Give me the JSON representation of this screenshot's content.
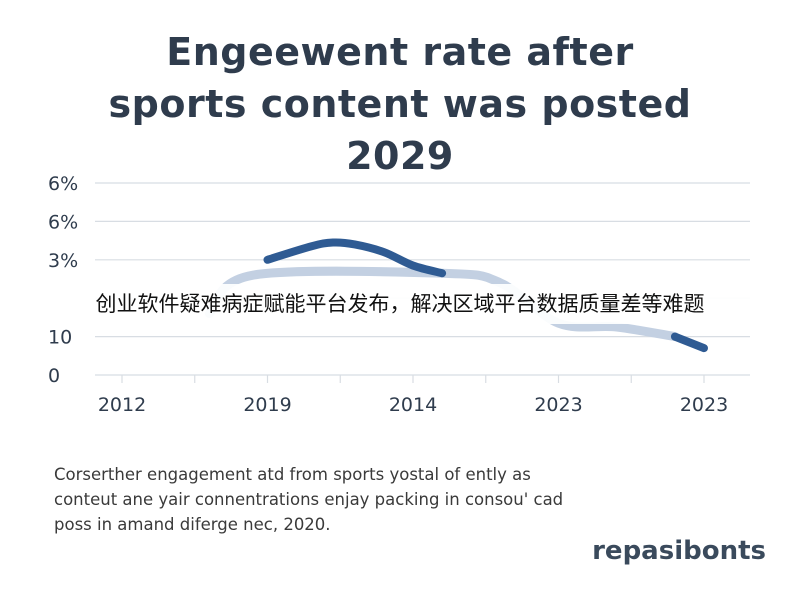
{
  "page": {
    "overlay_text": "创业软件疑难病症赋能平台发布，解决区域平台数据质量差等难题",
    "caption_lines": [
      "Corserther engagement atd from sports yostal of ently as",
      "conteut ane yair connentrations enjay packing in consou' cad",
      "poss in amand diferge nec, 2020."
    ],
    "footer_logo": "repasibonts",
    "colors": {
      "title": "#2f3c4d",
      "grid": "#d8dde3",
      "axis_text": "#2f3c4d",
      "series_dark": "#2f5b93",
      "series_light": "#c3d0e2"
    }
  },
  "chart_data": {
    "type": "line",
    "title": [
      "Engeewent rate after",
      "sports content was posted",
      "2029"
    ],
    "xlabel": "",
    "ylabel": "",
    "x_ticks": [
      "2012",
      "2019",
      "2014",
      "2023",
      "2023"
    ],
    "y_ticks": [
      "6%",
      "6%",
      "3%",
      "",
      "10",
      "0"
    ],
    "grid": true,
    "series": [
      {
        "style": "highlighted",
        "x": [
          1.0,
          1.3,
          1.45,
          1.6,
          1.8,
          2.0,
          2.2
        ],
        "values": [
          3.0,
          3.35,
          3.45,
          3.4,
          3.2,
          2.85,
          2.65
        ]
      },
      {
        "style": "faded",
        "x": [
          0.6,
          0.9,
          2.2,
          2.6,
          3.0,
          3.4,
          3.8
        ],
        "values": [
          1.6,
          2.6,
          2.65,
          2.4,
          1.35,
          1.25,
          1.0
        ]
      },
      {
        "style": "highlighted",
        "x": [
          3.8,
          4.0
        ],
        "values": [
          1.0,
          0.7
        ]
      }
    ]
  }
}
